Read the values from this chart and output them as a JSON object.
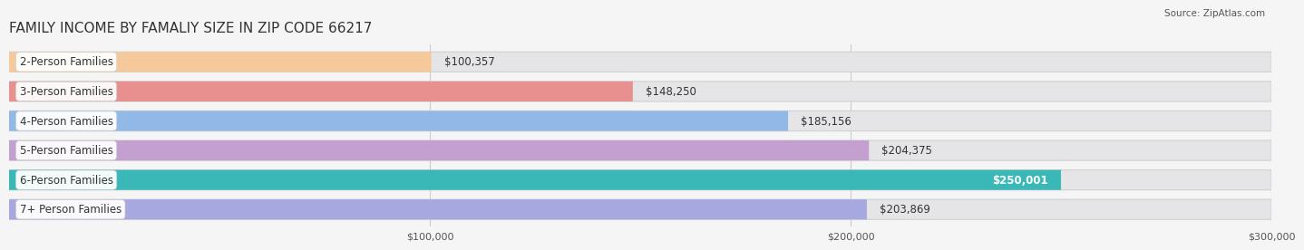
{
  "title": "FAMILY INCOME BY FAMALIY SIZE IN ZIP CODE 66217",
  "source": "Source: ZipAtlas.com",
  "categories": [
    "2-Person Families",
    "3-Person Families",
    "4-Person Families",
    "5-Person Families",
    "6-Person Families",
    "7+ Person Families"
  ],
  "values": [
    100357,
    148250,
    185156,
    204375,
    250001,
    203869
  ],
  "bar_colors": [
    "#f5c99a",
    "#e89090",
    "#92b8e8",
    "#c4a0d0",
    "#3ab8b8",
    "#a8a8e0"
  ],
  "label_colors": [
    "#333333",
    "#333333",
    "#333333",
    "#333333",
    "#ffffff",
    "#333333"
  ],
  "xlim_max": 300000,
  "xtick_positions": [
    100000,
    200000,
    300000
  ],
  "xtick_labels": [
    "$100,000",
    "$200,000",
    "$300,000"
  ],
  "background_color": "#f5f5f5",
  "bar_bg_color": "#e5e5e8",
  "title_fontsize": 11,
  "label_fontsize": 8.5,
  "value_fontsize": 8.5
}
